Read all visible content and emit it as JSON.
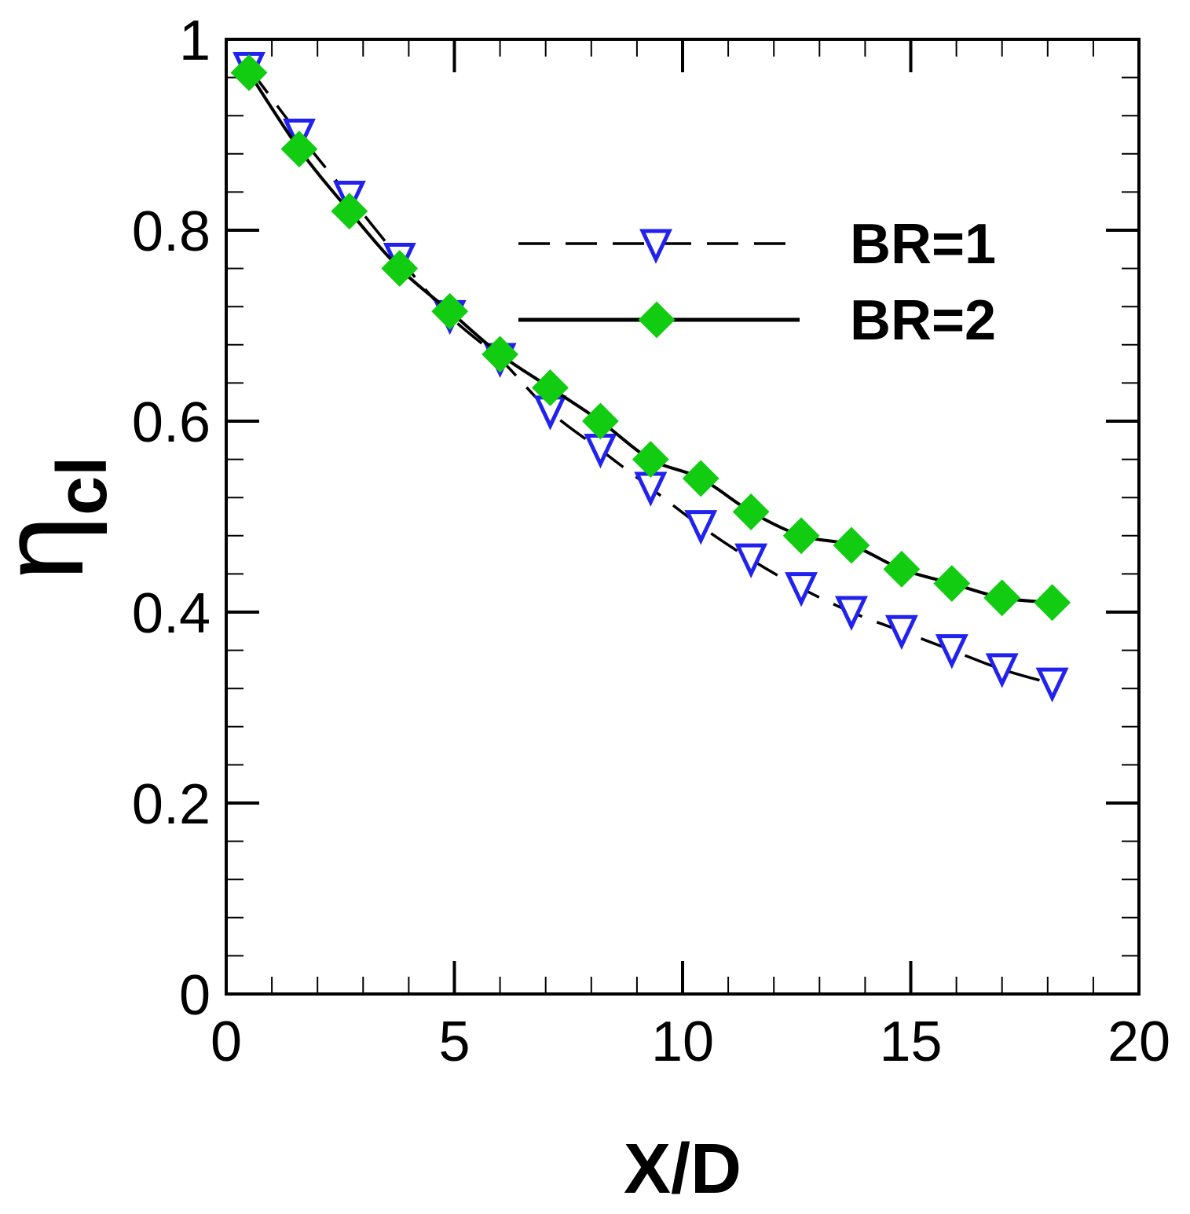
{
  "chart_data": {
    "type": "line",
    "xlabel": "X/D",
    "ylabel_main": "η",
    "ylabel_sub": "cl",
    "xlim": [
      0,
      20
    ],
    "ylim": [
      0,
      1
    ],
    "x_ticks": [
      "0",
      "5",
      "10",
      "15",
      "20"
    ],
    "y_ticks": [
      "0",
      "0.2",
      "0.4",
      "0.6",
      "0.8",
      "1"
    ],
    "grid": false,
    "legend_position": "upper-right",
    "series": [
      {
        "name": "BR=1",
        "line_style": "dashed",
        "marker": "triangle-down-open",
        "color": "#2222ee",
        "x": [
          0.5,
          1.6,
          2.7,
          3.8,
          4.9,
          6.0,
          7.1,
          8.2,
          9.3,
          10.4,
          11.5,
          12.6,
          13.7,
          14.8,
          15.9,
          17.0,
          18.1
        ],
        "y": [
          0.97,
          0.9,
          0.835,
          0.77,
          0.71,
          0.665,
          0.61,
          0.57,
          0.53,
          0.49,
          0.455,
          0.425,
          0.4,
          0.38,
          0.36,
          0.34,
          0.325
        ]
      },
      {
        "name": "BR=2",
        "line_style": "solid",
        "marker": "diamond-filled",
        "color": "#11cc11",
        "x": [
          0.5,
          1.6,
          2.7,
          3.8,
          4.9,
          6.0,
          7.1,
          8.2,
          9.3,
          10.4,
          11.5,
          12.6,
          13.7,
          14.8,
          15.9,
          17.0,
          18.1
        ],
        "y": [
          0.965,
          0.885,
          0.82,
          0.76,
          0.715,
          0.67,
          0.635,
          0.6,
          0.56,
          0.54,
          0.505,
          0.48,
          0.47,
          0.445,
          0.43,
          0.415,
          0.41
        ]
      }
    ]
  }
}
